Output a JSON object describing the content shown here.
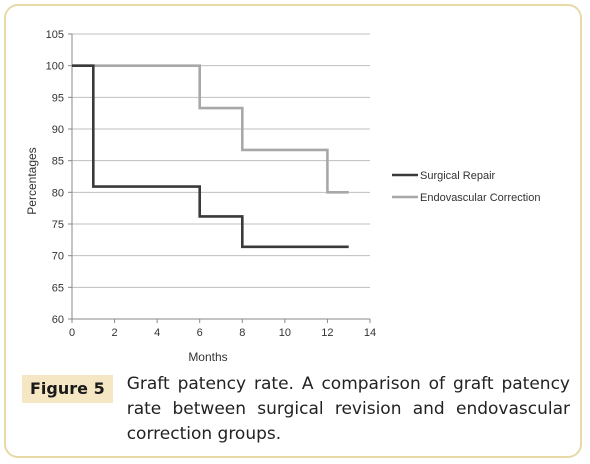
{
  "figure": {
    "label": "Figure 5",
    "caption": "Graft patency rate. A comparison of graft patency rate between surgical revision and endovascular correction groups."
  },
  "chart_data": {
    "type": "line",
    "step": true,
    "xlabel": "Months",
    "ylabel": "Percentages",
    "xlim": [
      0,
      14
    ],
    "ylim": [
      60,
      105
    ],
    "xticks": [
      0,
      2,
      4,
      6,
      8,
      10,
      12,
      14
    ],
    "yticks": [
      60,
      65,
      70,
      75,
      80,
      85,
      90,
      95,
      100,
      105
    ],
    "grid": "horizontal",
    "legend_position": "right",
    "series": [
      {
        "name": "Surgical Repair",
        "color": "#3a3a3a",
        "points": [
          [
            0,
            100
          ],
          [
            1,
            100
          ],
          [
            1,
            80.9
          ],
          [
            6,
            80.9
          ],
          [
            6,
            76.2
          ],
          [
            8,
            76.2
          ],
          [
            8,
            71.4
          ],
          [
            13,
            71.4
          ]
        ]
      },
      {
        "name": "Endovascular Correction",
        "color": "#a8a8a8",
        "points": [
          [
            0,
            100
          ],
          [
            6,
            100
          ],
          [
            6,
            93.3
          ],
          [
            8,
            93.3
          ],
          [
            8,
            86.7
          ],
          [
            12,
            86.7
          ],
          [
            12,
            80
          ],
          [
            13,
            80
          ]
        ]
      }
    ]
  }
}
